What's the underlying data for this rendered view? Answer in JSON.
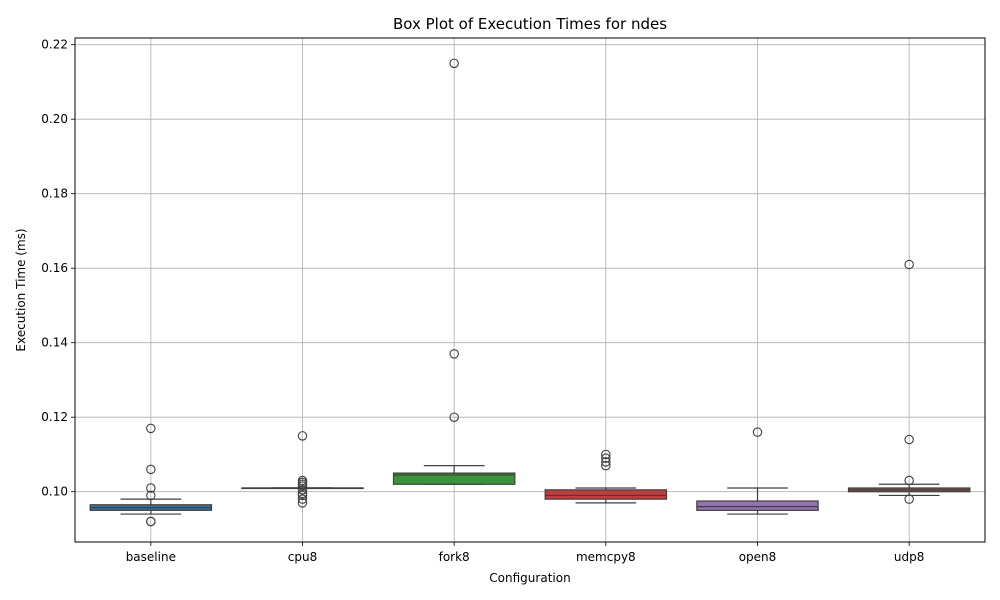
{
  "chart_data": {
    "type": "box",
    "title": "Box Plot of Execution Times for ndes",
    "xlabel": "Configuration",
    "ylabel": "Execution Time (ms)",
    "ylim": [
      0.0865,
      0.2218
    ],
    "yticks": [
      0.1,
      0.12,
      0.14,
      0.16,
      0.18,
      0.2,
      0.22
    ],
    "ytick_labels": [
      "0.10",
      "0.12",
      "0.14",
      "0.16",
      "0.18",
      "0.20",
      "0.22"
    ],
    "grid": true,
    "categories": [
      "baseline",
      "cpu8",
      "fork8",
      "memcpy8",
      "open8",
      "udp8"
    ],
    "colors": [
      "#3274a1",
      "#3a923a",
      "#3a923a",
      "#c03d3e",
      "#9372b2",
      "#845b53"
    ],
    "boxes": [
      {
        "whislo": 0.094,
        "q1": 0.095,
        "med": 0.0957,
        "q3": 0.0965,
        "whishi": 0.098,
        "fliers": [
          0.117,
          0.106,
          0.101,
          0.099,
          0.092,
          0.092
        ]
      },
      {
        "whislo": 0.101,
        "q1": 0.101,
        "med": 0.101,
        "q3": 0.101,
        "whishi": 0.101,
        "fliers": [
          0.115,
          0.103,
          0.1025,
          0.102,
          0.1015,
          0.1005,
          0.0995,
          0.099,
          0.098,
          0.097
        ]
      },
      {
        "whislo": 0.102,
        "q1": 0.102,
        "med": 0.1045,
        "q3": 0.105,
        "whishi": 0.107,
        "fliers": [
          0.215,
          0.137,
          0.12
        ]
      },
      {
        "whislo": 0.097,
        "q1": 0.098,
        "med": 0.099,
        "q3": 0.1005,
        "whishi": 0.101,
        "fliers": [
          0.11,
          0.109,
          0.108,
          0.107
        ]
      },
      {
        "whislo": 0.094,
        "q1": 0.095,
        "med": 0.096,
        "q3": 0.0975,
        "whishi": 0.101,
        "fliers": [
          0.116
        ]
      },
      {
        "whislo": 0.099,
        "q1": 0.1,
        "med": 0.1005,
        "q3": 0.101,
        "whishi": 0.102,
        "fliers": [
          0.161,
          0.114,
          0.103,
          0.098
        ]
      }
    ]
  }
}
